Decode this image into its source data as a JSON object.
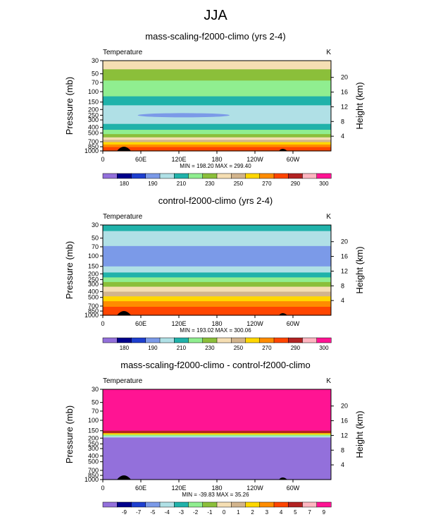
{
  "figure": {
    "season": "JJA",
    "colors": {
      "palette": [
        "#9370db",
        "#00008b",
        "#1e3fcf",
        "#7b9ae8",
        "#b0e0e6",
        "#20b2aa",
        "#90ee90",
        "#8bbf3a",
        "#f5deb3",
        "#d2b48c",
        "#ffd700",
        "#ff8c00",
        "#ff4500",
        "#b22222",
        "#ffb6c1",
        "#ff1493"
      ]
    }
  },
  "chart_data": [
    {
      "type": "heatmap",
      "title": "mass-scaling-f2000-climo (yrs 2-4)",
      "variable": "Temperature",
      "units": "K",
      "ylabel": "Pressure (mb)",
      "ylabel_right": "Height (km)",
      "x_ticks": [
        "0",
        "60E",
        "120E",
        "180",
        "120W",
        "60W"
      ],
      "y_ticks": [
        "30",
        "50",
        "70",
        "100",
        "150",
        "200",
        "250",
        "300",
        "400",
        "500",
        "700",
        "850",
        "1000"
      ],
      "y_ticks_right": [
        "20",
        "16",
        "12",
        "8",
        "4"
      ],
      "stats": "MIN = 198.20   MAX = 299.40",
      "min": 198.2,
      "max": 299.4,
      "colorbar_labels": [
        "180",
        "190",
        "210",
        "230",
        "250",
        "270",
        "290",
        "300"
      ],
      "profile": [
        {
          "p_top": 30,
          "p_bot": 42,
          "color_index": 8
        },
        {
          "p_top": 42,
          "p_bot": 65,
          "color_index": 7
        },
        {
          "p_top": 65,
          "p_bot": 120,
          "color_index": 6
        },
        {
          "p_top": 120,
          "p_bot": 170,
          "color_index": 5
        },
        {
          "p_top": 170,
          "p_bot": 350,
          "color_index": 4
        },
        {
          "p_top": 350,
          "p_bot": 440,
          "color_index": 5
        },
        {
          "p_top": 440,
          "p_bot": 520,
          "color_index": 6
        },
        {
          "p_top": 520,
          "p_bot": 590,
          "color_index": 7
        },
        {
          "p_top": 590,
          "p_bot": 650,
          "color_index": 8
        },
        {
          "p_top": 650,
          "p_bot": 710,
          "color_index": 9
        },
        {
          "p_top": 710,
          "p_bot": 780,
          "color_index": 10
        },
        {
          "p_top": 780,
          "p_bot": 860,
          "color_index": 11
        },
        {
          "p_top": 860,
          "p_bot": 1000,
          "color_index": 12
        }
      ],
      "cold_tongue": {
        "p_center": 250,
        "lon_start": 55,
        "lon_end": 200,
        "color_index": 3
      }
    },
    {
      "type": "heatmap",
      "title": "control-f2000-climo (yrs 2-4)",
      "variable": "Temperature",
      "units": "K",
      "ylabel": "Pressure (mb)",
      "ylabel_right": "Height (km)",
      "x_ticks": [
        "0",
        "60E",
        "120E",
        "180",
        "120W",
        "60W"
      ],
      "y_ticks": [
        "30",
        "50",
        "70",
        "100",
        "150",
        "200",
        "250",
        "300",
        "400",
        "500",
        "700",
        "850",
        "1000"
      ],
      "y_ticks_right": [
        "20",
        "16",
        "12",
        "8",
        "4"
      ],
      "stats": "MIN = 193.02   MAX = 300.06",
      "min": 193.02,
      "max": 300.06,
      "colorbar_labels": [
        "180",
        "190",
        "210",
        "230",
        "250",
        "270",
        "290",
        "300"
      ],
      "profile": [
        {
          "p_top": 30,
          "p_bot": 38,
          "color_index": 5
        },
        {
          "p_top": 38,
          "p_bot": 68,
          "color_index": 4
        },
        {
          "p_top": 68,
          "p_bot": 150,
          "color_index": 3
        },
        {
          "p_top": 150,
          "p_bot": 190,
          "color_index": 4
        },
        {
          "p_top": 190,
          "p_bot": 230,
          "color_index": 5
        },
        {
          "p_top": 230,
          "p_bot": 275,
          "color_index": 6
        },
        {
          "p_top": 275,
          "p_bot": 330,
          "color_index": 7
        },
        {
          "p_top": 330,
          "p_bot": 400,
          "color_index": 8
        },
        {
          "p_top": 400,
          "p_bot": 480,
          "color_index": 9
        },
        {
          "p_top": 480,
          "p_bot": 580,
          "color_index": 10
        },
        {
          "p_top": 580,
          "p_bot": 720,
          "color_index": 11
        },
        {
          "p_top": 720,
          "p_bot": 1000,
          "color_index": 12
        }
      ]
    },
    {
      "type": "heatmap",
      "title": "mass-scaling-f2000-climo - control-f2000-climo",
      "variable": "Temperature",
      "units": "K",
      "ylabel": "Pressure (mb)",
      "ylabel_right": "Height (km)",
      "x_ticks": [
        "0",
        "60E",
        "120E",
        "180",
        "120W",
        "60W"
      ],
      "y_ticks": [
        "30",
        "50",
        "70",
        "100",
        "150",
        "200",
        "250",
        "300",
        "400",
        "500",
        "700",
        "850",
        "1000"
      ],
      "y_ticks_right": [
        "20",
        "16",
        "12",
        "8",
        "4"
      ],
      "stats": "MIN = -39.83   MAX = 35.26",
      "min": -39.83,
      "max": 35.26,
      "colorbar_labels": [
        "-9",
        "-7",
        "-5",
        "-4",
        "-3",
        "-2",
        "-1",
        "0",
        "1",
        "2",
        "3",
        "4",
        "5",
        "7",
        "9"
      ],
      "profile": [
        {
          "p_top": 30,
          "p_bot": 150,
          "color_index": 15
        },
        {
          "p_top": 150,
          "p_bot": 165,
          "color_index": 13
        },
        {
          "p_top": 165,
          "p_bot": 175,
          "color_index": 10
        },
        {
          "p_top": 175,
          "p_bot": 185,
          "color_index": 6
        },
        {
          "p_top": 185,
          "p_bot": 195,
          "color_index": 4
        },
        {
          "p_top": 195,
          "p_bot": 1000,
          "color_index": 0
        }
      ]
    }
  ]
}
